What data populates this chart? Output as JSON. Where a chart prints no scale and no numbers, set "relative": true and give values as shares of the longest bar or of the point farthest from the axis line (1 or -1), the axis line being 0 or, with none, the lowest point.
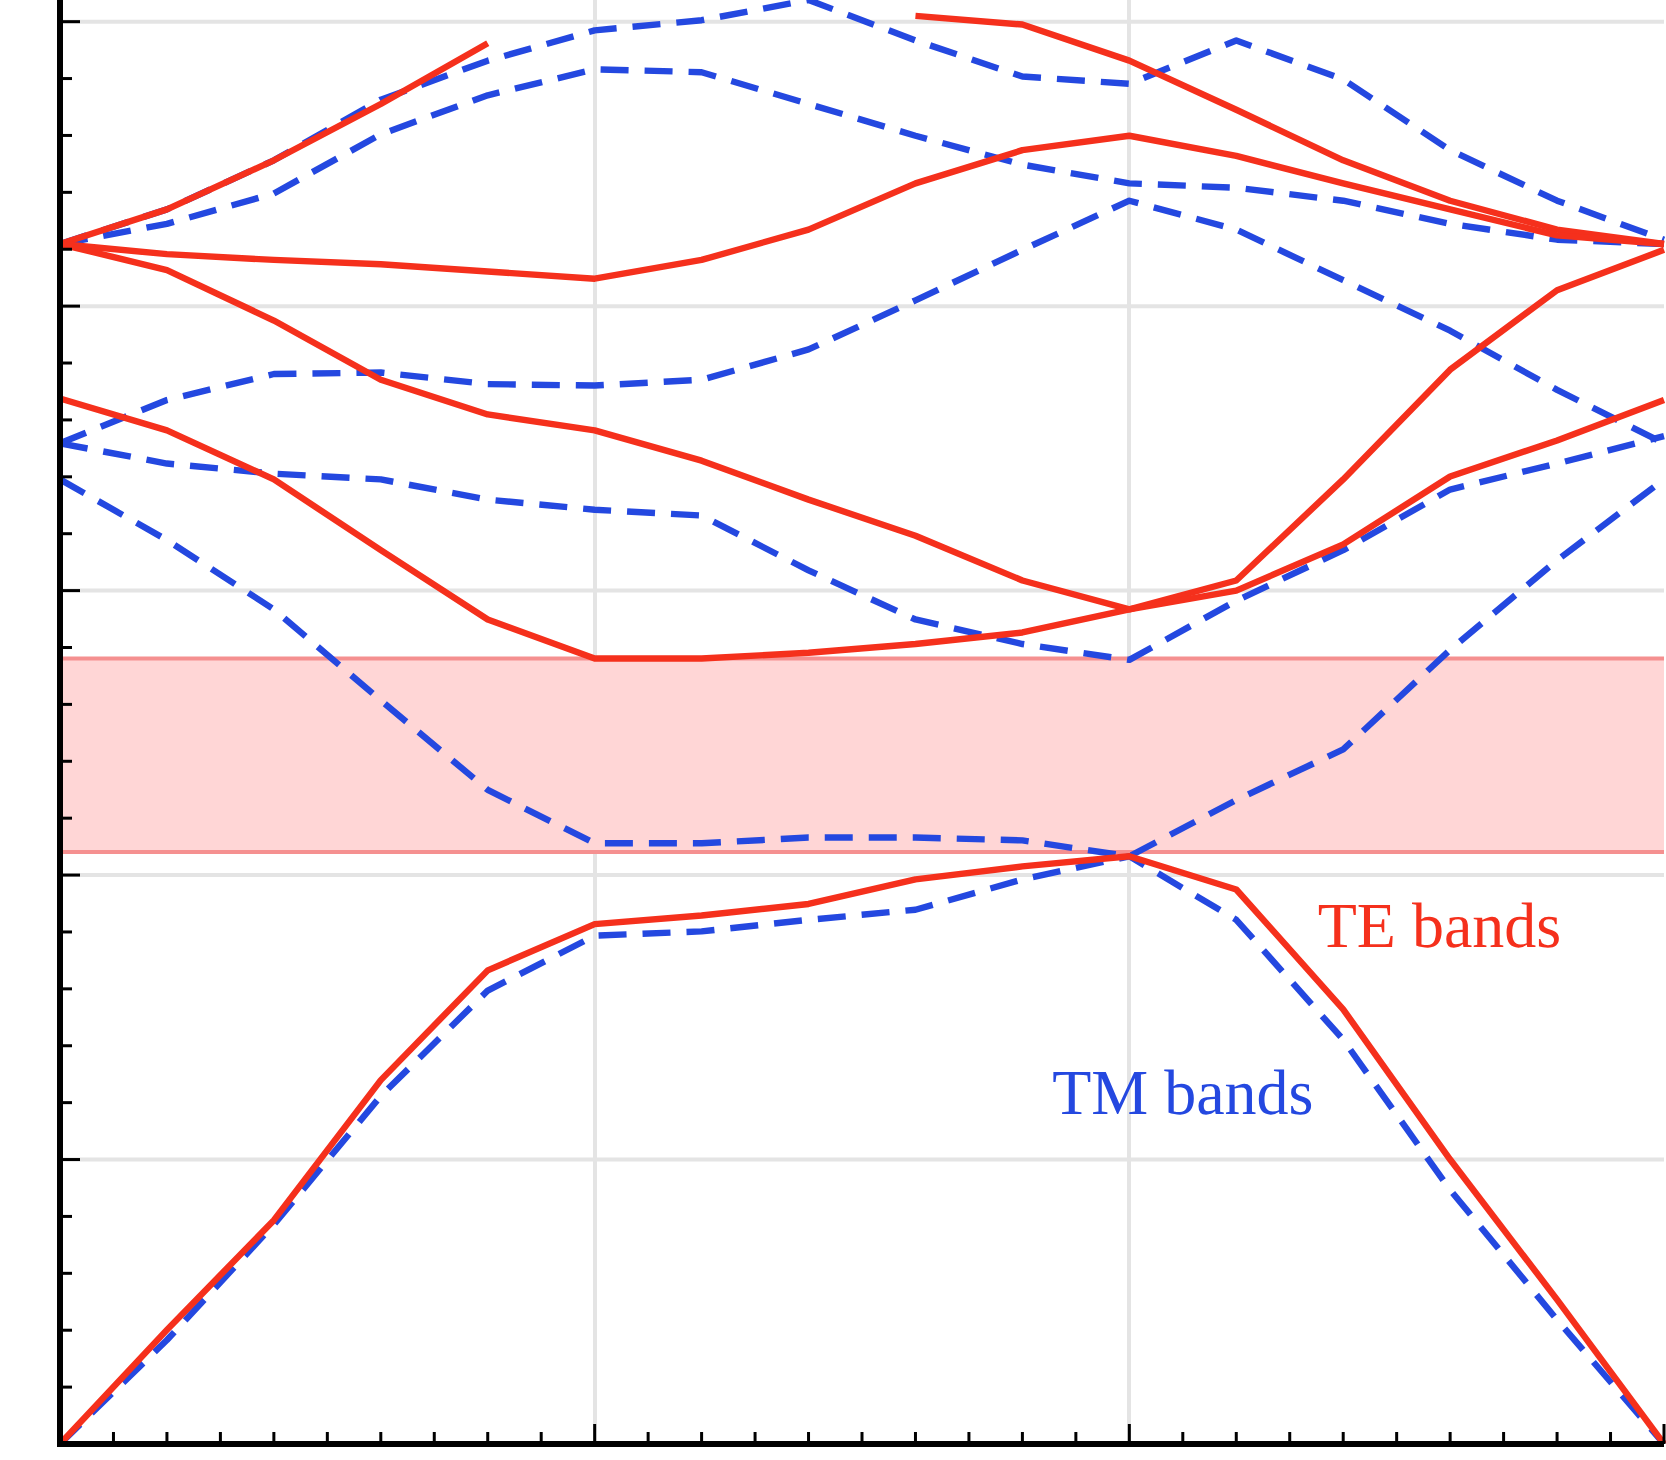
{
  "chart_data": {
    "type": "line",
    "relative": true,
    "grid": true,
    "legend": false,
    "tick_labels": false,
    "marker": "none",
    "categories": [
      null,
      null,
      null,
      null,
      null,
      null,
      null,
      null,
      null,
      null,
      null,
      null,
      null,
      null,
      null,
      null
    ],
    "bands": [
      {
        "axis": "y",
        "from": 0.41,
        "to": 0.544,
        "color": "#ffd6d6"
      }
    ],
    "ref_lines": [
      {
        "axis": "y",
        "value": 0.41,
        "color": "#f59090"
      },
      {
        "axis": "y",
        "value": 0.544,
        "color": "#f59090"
      }
    ],
    "series": [
      {
        "name": "TE bands",
        "color": "#f5301c",
        "line_style": "solid",
        "values": [
          0,
          0.079,
          0.155,
          0.252,
          0.328,
          0.36,
          0.366,
          0.374,
          0.391,
          0.4,
          0.407,
          0.384,
          0.301,
          0.197,
          0.1,
          0
        ]
      },
      {
        "color": "#f5301c",
        "line_style": "solid",
        "values": [
          0.724,
          0.702,
          0.668,
          0.619,
          0.571,
          0.544,
          0.544,
          0.548,
          0.554,
          0.562,
          0.578,
          0.591,
          0.623,
          0.67,
          0.695,
          0.723
        ]
      },
      {
        "color": "#f5301c",
        "line_style": "solid",
        "values": [
          0.831,
          0.813,
          0.778,
          0.737,
          0.713,
          0.702,
          0.681,
          0.654,
          0.629,
          0.598,
          0.578,
          0.598,
          0.668,
          0.744,
          0.799,
          0.827
        ]
      },
      {
        "color": "#f5301c",
        "line_style": "solid",
        "values": [
          0.831,
          0.824,
          0.82,
          0.817,
          0.812,
          0.807,
          0.82,
          0.841,
          0.873,
          0.896,
          0.906,
          0.892,
          0.873,
          0.855,
          0.837,
          0.831
        ]
      },
      {
        "color": "#f5301c",
        "line_style": "solid",
        "values": [
          0.831,
          0.855,
          0.889,
          0.928,
          0.97,
          null,
          null,
          null,
          0.989,
          0.983,
          0.958,
          0.924,
          0.889,
          0.861,
          0.841,
          0.831
        ]
      },
      {
        "name": "TM bands",
        "color": "#2448e0",
        "line_style": "dashed",
        "values": [
          0,
          0.072,
          0.152,
          0.241,
          0.314,
          0.352,
          0.355,
          0.363,
          0.37,
          0.391,
          0.407,
          0.363,
          0.28,
          0.176,
          0.086,
          0
        ]
      },
      {
        "color": "#2448e0",
        "line_style": "dashed",
        "values": [
          0.668,
          0.626,
          0.578,
          0.515,
          0.453,
          0.416,
          0.416,
          0.42,
          0.42,
          0.418,
          0.407,
          0.446,
          0.481,
          0.55,
          0.612,
          0.668
        ]
      },
      {
        "color": "#2448e0",
        "line_style": "dashed",
        "values": [
          0.693,
          0.679,
          0.672,
          0.668,
          0.654,
          0.647,
          0.643,
          0.605,
          0.571,
          0.554,
          0.543,
          0.584,
          0.619,
          0.661,
          0.679,
          0.698
        ]
      },
      {
        "color": "#2448e0",
        "line_style": "dashed",
        "values": [
          0.693,
          0.723,
          0.741,
          0.742,
          0.734,
          0.733,
          0.737,
          0.758,
          0.792,
          0.827,
          0.861,
          0.841,
          0.806,
          0.771,
          0.73,
          0.693
        ]
      },
      {
        "color": "#2448e0",
        "line_style": "dashed",
        "values": [
          0.831,
          0.845,
          0.866,
          0.907,
          0.934,
          0.952,
          0.95,
          0.928,
          0.906,
          0.886,
          0.873,
          0.87,
          0.861,
          0.845,
          0.834,
          0.831
        ]
      },
      {
        "color": "#2448e0",
        "line_style": "dashed",
        "values": [
          0.831,
          0.855,
          0.889,
          0.931,
          0.958,
          0.979,
          0.986,
          1,
          0.972,
          0.947,
          0.942,
          0.972,
          0.945,
          0.896,
          0.861,
          0.834
        ]
      }
    ]
  }
}
